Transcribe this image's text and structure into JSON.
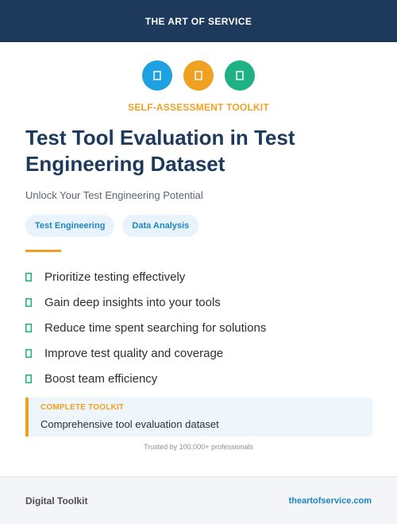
{
  "header": {
    "brand": "THE ART OF SERVICE"
  },
  "icons": [
    {
      "name": "page-icon",
      "color": "#1ea1e1"
    },
    {
      "name": "page-icon",
      "color": "#f0a122"
    },
    {
      "name": "page-icon",
      "color": "#1fb084"
    }
  ],
  "kicker": "SELF-ASSESSMENT TOOLKIT",
  "title": "Test Tool Evaluation in Test Engineering Dataset",
  "subtitle": "Unlock Your Test Engineering Potential",
  "tags": [
    "Test Engineering",
    "Data Analysis"
  ],
  "benefits": [
    "Prioritize testing effectively",
    "Gain deep insights into your tools",
    "Reduce time spent searching for solutions",
    "Improve test quality and coverage",
    "Boost team efficiency"
  ],
  "callout": {
    "label": "COMPLETE TOOLKIT",
    "text": "Comprehensive tool evaluation dataset"
  },
  "trust": "Trusted by 100,000+ professionals",
  "footer": {
    "left": "Digital Toolkit",
    "right": "theartofservice.com"
  },
  "colors": {
    "navy": "#1d3a5c",
    "accent_orange": "#f0a122",
    "accent_blue": "#1a86c4",
    "check_green": "#1fb084"
  }
}
